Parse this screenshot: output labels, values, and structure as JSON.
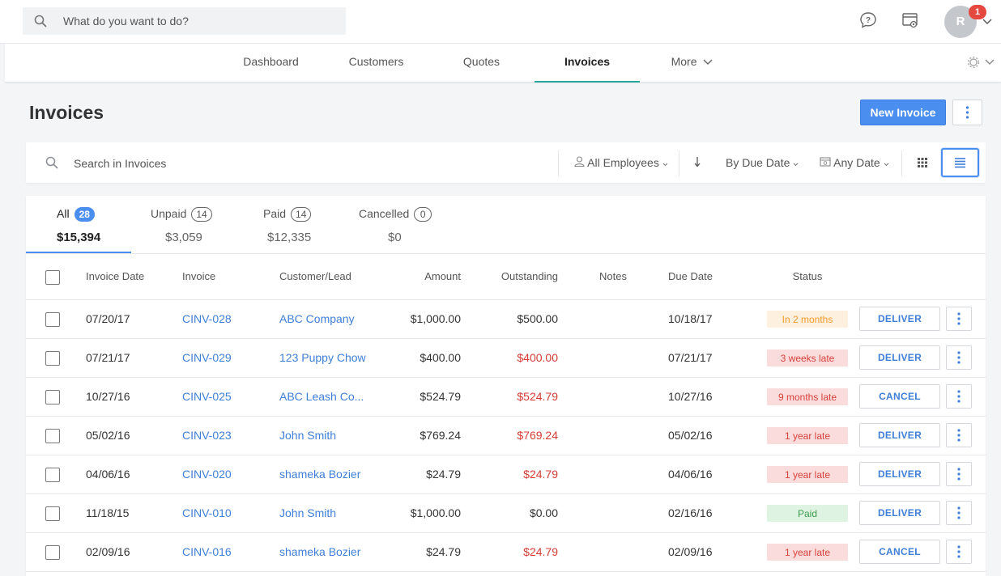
{
  "topbar": {
    "search_placeholder": "What do you want to do?",
    "avatar_initial": "R",
    "notification_count": "1"
  },
  "nav": {
    "tabs": [
      {
        "label": "Dashboard"
      },
      {
        "label": "Customers"
      },
      {
        "label": "Quotes"
      },
      {
        "label": "Invoices",
        "active": true
      },
      {
        "label": "More"
      }
    ]
  },
  "header": {
    "title": "Invoices",
    "new_button": "New Invoice"
  },
  "filters": {
    "search_placeholder": "Search in Invoices",
    "employees": "All Employees",
    "sort": "By Due Date",
    "date": "Any Date"
  },
  "status_tabs": [
    {
      "label": "All",
      "count": "28",
      "amount": "$15,394"
    },
    {
      "label": "Unpaid",
      "count": "14",
      "amount": "$3,059"
    },
    {
      "label": "Paid",
      "count": "14",
      "amount": "$12,335"
    },
    {
      "label": "Cancelled",
      "count": "0",
      "amount": "$0"
    }
  ],
  "table": {
    "columns": [
      "Invoice Date",
      "Invoice",
      "Customer/Lead",
      "Amount",
      "Outstanding",
      "Notes",
      "Due Date",
      "Status"
    ],
    "rows": [
      {
        "date": "07/20/17",
        "invoice": "CINV-028",
        "customer": "ABC Company",
        "amount": "$1,000.00",
        "outstanding": "$500.00",
        "due": "10/18/17",
        "status": "In 2 months",
        "action": "DELIVER"
      },
      {
        "date": "07/21/17",
        "invoice": "CINV-029",
        "customer": "123 Puppy Chow",
        "amount": "$400.00",
        "outstanding": "$400.00",
        "due": "07/21/17",
        "status": "3 weeks late",
        "action": "DELIVER"
      },
      {
        "date": "10/27/16",
        "invoice": "CINV-025",
        "customer": "ABC Leash Co...",
        "amount": "$524.79",
        "outstanding": "$524.79",
        "due": "10/27/16",
        "status": "9 months late",
        "action": "CANCEL"
      },
      {
        "date": "05/02/16",
        "invoice": "CINV-023",
        "customer": "John Smith",
        "amount": "$769.24",
        "outstanding": "$769.24",
        "due": "05/02/16",
        "status": "1 year late",
        "action": "DELIVER"
      },
      {
        "date": "04/06/16",
        "invoice": "CINV-020",
        "customer": "shameka Bozier",
        "amount": "$24.79",
        "outstanding": "$24.79",
        "due": "04/06/16",
        "status": "1 year late",
        "action": "DELIVER"
      },
      {
        "date": "11/18/15",
        "invoice": "CINV-010",
        "customer": "John Smith",
        "amount": "$1,000.00",
        "outstanding": "$0.00",
        "due": "02/16/16",
        "status": "Paid",
        "action": "DELIVER"
      },
      {
        "date": "02/09/16",
        "invoice": "CINV-016",
        "customer": "shameka Bozier",
        "amount": "$24.79",
        "outstanding": "$24.79",
        "due": "02/09/16",
        "status": "1 year late",
        "action": "CANCEL"
      }
    ]
  },
  "colors": {
    "accent": "#4a8ef0",
    "link": "#3f7fd8",
    "overdue": "#d43b34",
    "nav_active": "#26a69a",
    "status_future": "#f19a2a",
    "status_paid": "#3c9a4c"
  }
}
